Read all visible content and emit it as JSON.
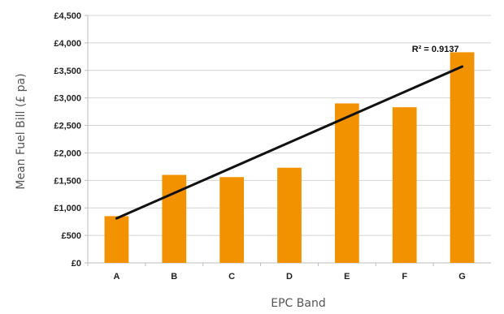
{
  "chart_data": {
    "type": "bar",
    "categories": [
      "A",
      "B",
      "C",
      "D",
      "E",
      "F",
      "G"
    ],
    "values": [
      850,
      1600,
      1560,
      1730,
      2900,
      2830,
      3830
    ],
    "xlabel": "EPC Band",
    "ylabel": "Mean Fuel Bill (£ pa)",
    "ylim": [
      0,
      4500
    ],
    "yticks": [
      0,
      500,
      1000,
      1500,
      2000,
      2500,
      3000,
      3500,
      4000,
      4500
    ],
    "ytick_labels": [
      "£0",
      "£500",
      "£1,000",
      "£1,500",
      "£2,000",
      "£2,500",
      "£3,000",
      "£3,500",
      "£4,000",
      "£4,500"
    ],
    "grid": true,
    "legend": "none",
    "bar_color": "#F39200",
    "trendline": {
      "type": "linear",
      "color": "#111111",
      "start": {
        "category": "A",
        "value": 810
      },
      "end": {
        "category": "G",
        "value": 3570
      },
      "annotation": "R² = 0.9137"
    }
  }
}
